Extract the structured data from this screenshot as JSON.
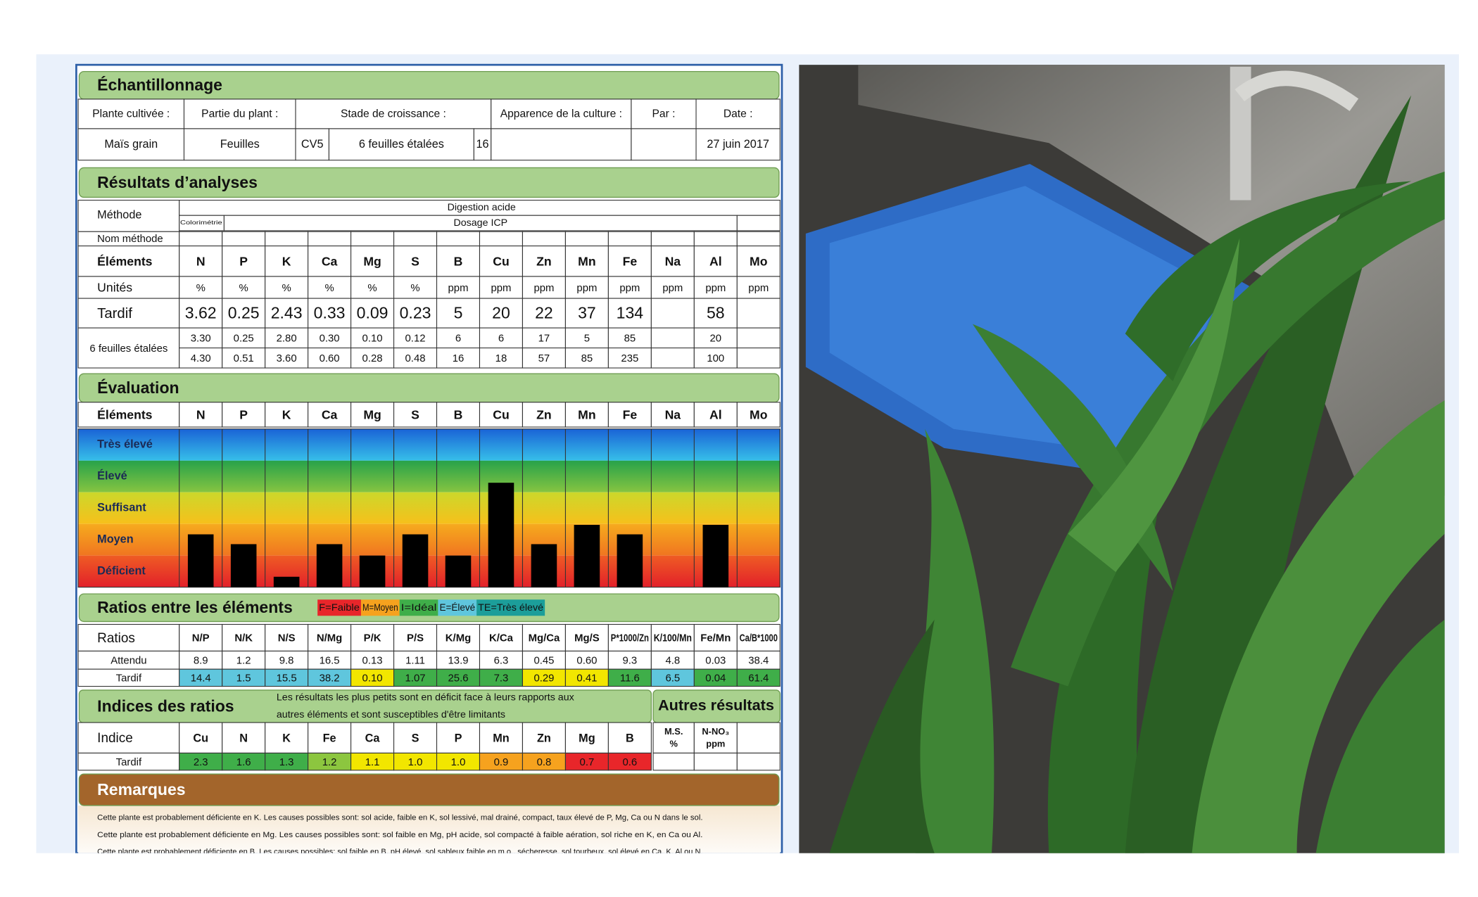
{
  "echantillonnage": {
    "title": "Échantillonnage",
    "headers": [
      "Plante cultivée :",
      "Partie du plant :",
      "Stade de croissance :",
      "Apparence de la culture :",
      "Par :",
      "Date :"
    ],
    "plante": "Maïs grain",
    "partie": "Feuilles",
    "stade_code": "CV5",
    "stade": "6 feuilles étalées",
    "stade_num": "16",
    "date": "27 juin 2017"
  },
  "resultats": {
    "title": "Résultats d’analyses",
    "methode_label": "Méthode",
    "digestion": "Digestion acide",
    "colorimetrie": "Colorimétrie",
    "dosage": "Dosage ICP",
    "nom_methode_label": "Nom méthode",
    "elements_label": "Éléments",
    "elements": [
      "N",
      "P",
      "K",
      "Ca",
      "Mg",
      "S",
      "B",
      "Cu",
      "Zn",
      "Mn",
      "Fe",
      "Na",
      "Al",
      "Mo"
    ],
    "unites_label": "Unités",
    "unites": [
      "%",
      "%",
      "%",
      "%",
      "%",
      "%",
      "ppm",
      "ppm",
      "ppm",
      "ppm",
      "ppm",
      "ppm",
      "ppm",
      "ppm"
    ],
    "tardif_label": "Tardif",
    "tardif": [
      "3.62",
      "0.25",
      "2.43",
      "0.33",
      "0.09",
      "0.23",
      "5",
      "20",
      "22",
      "37",
      "134",
      null,
      "58",
      null
    ],
    "reference_label": "6 feuilles étalées",
    "min": [
      "3.30",
      "0.25",
      "2.80",
      "0.30",
      "0.10",
      "0.12",
      "6",
      "6",
      "17",
      "5",
      "85",
      null,
      "20",
      null
    ],
    "max": [
      "4.30",
      "0.51",
      "3.60",
      "0.60",
      "0.28",
      "0.48",
      "16",
      "18",
      "57",
      "85",
      "235",
      null,
      "100",
      null
    ]
  },
  "evaluation": {
    "title": "Évaluation",
    "levels": [
      "Très élevé",
      "Élevé",
      "Suffisant",
      "Moyen",
      "Déficient"
    ],
    "level_colors": [
      [
        "#1a63d6",
        "#36bfe9"
      ],
      [
        "#27a24a",
        "#86c441"
      ],
      [
        "#cbd82b",
        "#f7c01b"
      ],
      [
        "#f6ab1e",
        "#f07520"
      ],
      [
        "#ef5c24",
        "#e2202a"
      ]
    ],
    "bar_color": "#000000",
    "bars": [
      1.67,
      1.36,
      0.33,
      1.36,
      1.0,
      1.67,
      1.0,
      3.3,
      1.36,
      1.97,
      1.67,
      null,
      1.97,
      null
    ]
  },
  "ratios": {
    "title": "Ratios entre les éléments",
    "legend": [
      {
        "label": "F=Faible",
        "color": "#e8262a"
      },
      {
        "label": "M=Moyen",
        "color": "#f6a21e"
      },
      {
        "label": "I=Idéal",
        "color": "#3fae49"
      },
      {
        "label": "E=Élevé",
        "color": "#5fc6dd"
      },
      {
        "label": "TE=Très élevé",
        "color": "#1c9e9a"
      }
    ],
    "ratios_label": "Ratios",
    "names": [
      "N/P",
      "N/K",
      "N/S",
      "N/Mg",
      "P/K",
      "P/S",
      "K/Mg",
      "K/Ca",
      "Mg/Ca",
      "Mg/S",
      "P*1000/Zn",
      "K/100/Mn",
      "Fe/Mn",
      "Ca/B*1000"
    ],
    "attendu_label": "Attendu",
    "attendu": [
      "8.9",
      "1.2",
      "9.8",
      "16.5",
      "0.13",
      "1.11",
      "13.9",
      "6.3",
      "0.45",
      "0.60",
      "9.3",
      "4.8",
      "0.03",
      "38.4"
    ],
    "tardif_label": "Tardif",
    "tardif": [
      "14.4",
      "1.5",
      "15.5",
      "38.2",
      "0.10",
      "1.07",
      "25.6",
      "7.3",
      "0.29",
      "0.41",
      "11.6",
      "6.5",
      "0.04",
      "61.4"
    ],
    "tardif_colors": [
      "#5fc6dd",
      "#5fc6dd",
      "#5fc6dd",
      "#5fc6dd",
      "#f2e600",
      "#3fae49",
      "#3fae49",
      "#3fae49",
      "#f2e600",
      "#f2e600",
      "#3fae49",
      "#5fc6dd",
      "#3fae49",
      "#3fae49"
    ]
  },
  "indices": {
    "title": "Indices des ratios",
    "note_lines": [
      "Les résultats les plus petits sont en déficit face à leurs rapports aux",
      "autres éléments et sont susceptibles d'être limitants"
    ],
    "autres_title": "Autres résultats",
    "indice_label": "Indice",
    "names": [
      "Cu",
      "N",
      "K",
      "Fe",
      "Ca",
      "S",
      "P",
      "Mn",
      "Zn",
      "Mg",
      "B"
    ],
    "tardif_label": "Tardif",
    "tardif": [
      "2.3",
      "1.6",
      "1.3",
      "1.2",
      "1.1",
      "1.0",
      "1.0",
      "0.9",
      "0.8",
      "0.7",
      "0.6"
    ],
    "tardif_colors": [
      "#3fae49",
      "#3fae49",
      "#3fae49",
      "#8cc63f",
      "#f2e600",
      "#f2e600",
      "#f2e600",
      "#f6a21e",
      "#f6a21e",
      "#e8262a",
      "#e8262a"
    ],
    "autres_headers": [
      [
        "M.S.",
        "%"
      ],
      [
        "N-NO₃",
        "ppm"
      ]
    ]
  },
  "remarques": {
    "title": "Remarques",
    "lines": [
      "Cette plante est probablement déficiente en K.  Les causes possibles sont:  sol acide, faible en K, sol lessivé, mal drainé, compact, taux élevé de P, Mg, Ca ou N dans le sol.",
      "Cette plante est probablement déficiente en Mg.  Les causes possibles sont:  sol faible en Mg,  pH acide, sol compacté à faible aération, sol riche en K, en Ca ou Al.",
      "Cette plante est probablement déficiente en B.  Les causes possibles:  sol faible en B, pH élevé, sol sableux faible en m.o., sécheresse, sol tourbeux, sol élevé en Ca, K, Al ou N."
    ]
  }
}
